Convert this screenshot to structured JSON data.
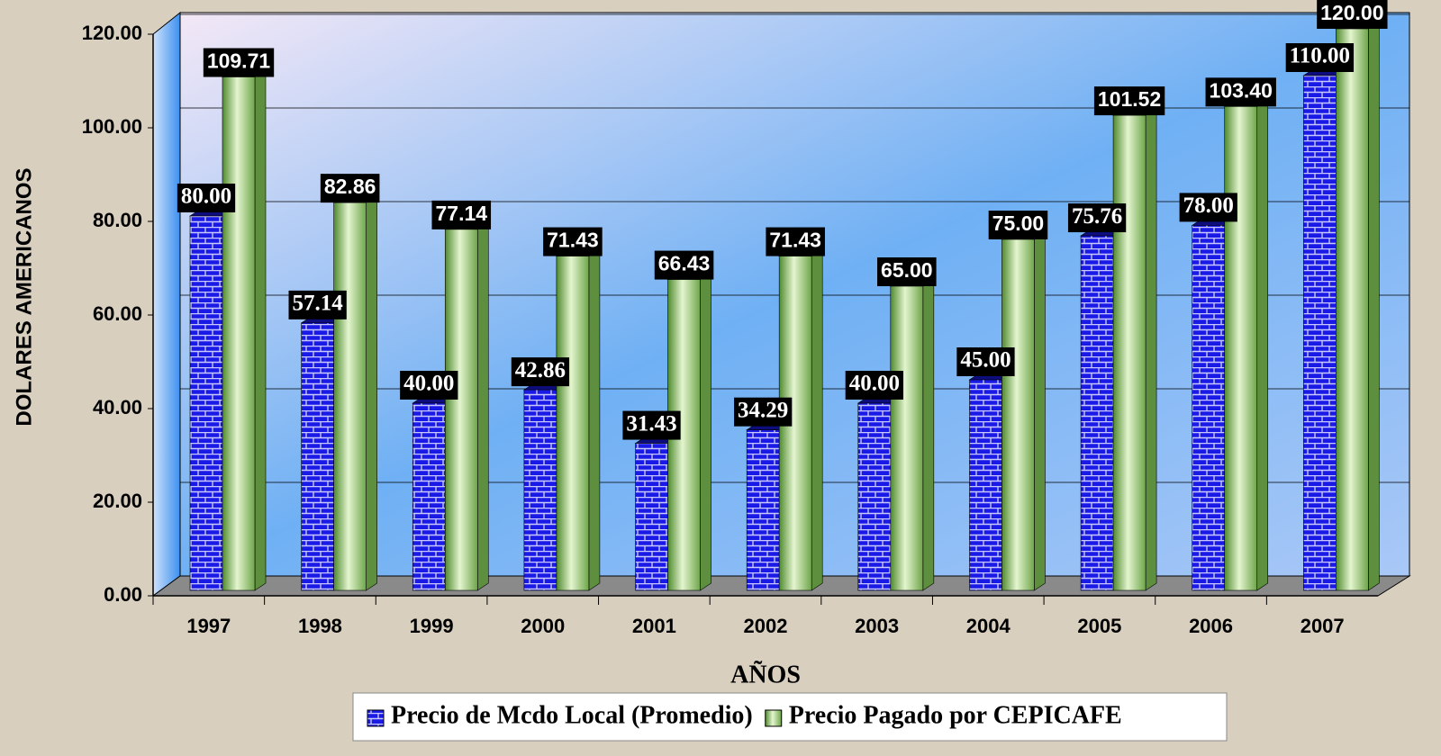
{
  "chart_data": {
    "type": "bar",
    "y_label": "DOLARES AMERICANOS",
    "x_label": "AÑOS",
    "categories": [
      "1997",
      "1998",
      "1999",
      "2000",
      "2001",
      "2002",
      "2003",
      "2004",
      "2005",
      "2006",
      "2007"
    ],
    "series": [
      {
        "name": "Precio de Mcdo Local (Promedio)",
        "color": "#1a1ae6",
        "values": [
          80,
          57.14,
          40,
          42.86,
          31.43,
          34.29,
          40,
          45,
          75.76,
          78,
          110
        ],
        "value_labels": [
          "80.00",
          "57.14",
          "40.00",
          "42.86",
          "31.43",
          "34.29",
          "40.00",
          "45.00",
          "75.76",
          "78.00",
          "110.00"
        ]
      },
      {
        "name": "Precio Pagado por CEPICAFE",
        "color": "#8fbf6a",
        "values": [
          109.71,
          82.86,
          77.14,
          71.43,
          66.43,
          71.43,
          65,
          75,
          101.52,
          103.4,
          120
        ],
        "value_labels": [
          "109.71",
          "82.86",
          "77.14",
          "71.43",
          "66.43",
          "71.43",
          "65.00",
          "75.00",
          "101.52",
          "103.40",
          "120.00"
        ]
      }
    ],
    "ylim": [
      0,
      120
    ],
    "yticks": [
      {
        "value": 0,
        "label": "0.00"
      },
      {
        "value": 20,
        "label": "20.00"
      },
      {
        "value": 40,
        "label": "40.00"
      },
      {
        "value": 60,
        "label": "60.00"
      },
      {
        "value": 80,
        "label": "80.00"
      },
      {
        "value": 100,
        "label": "100.00"
      },
      {
        "value": 120,
        "label": "120.00"
      }
    ],
    "grid": true,
    "legend": "bottom"
  }
}
